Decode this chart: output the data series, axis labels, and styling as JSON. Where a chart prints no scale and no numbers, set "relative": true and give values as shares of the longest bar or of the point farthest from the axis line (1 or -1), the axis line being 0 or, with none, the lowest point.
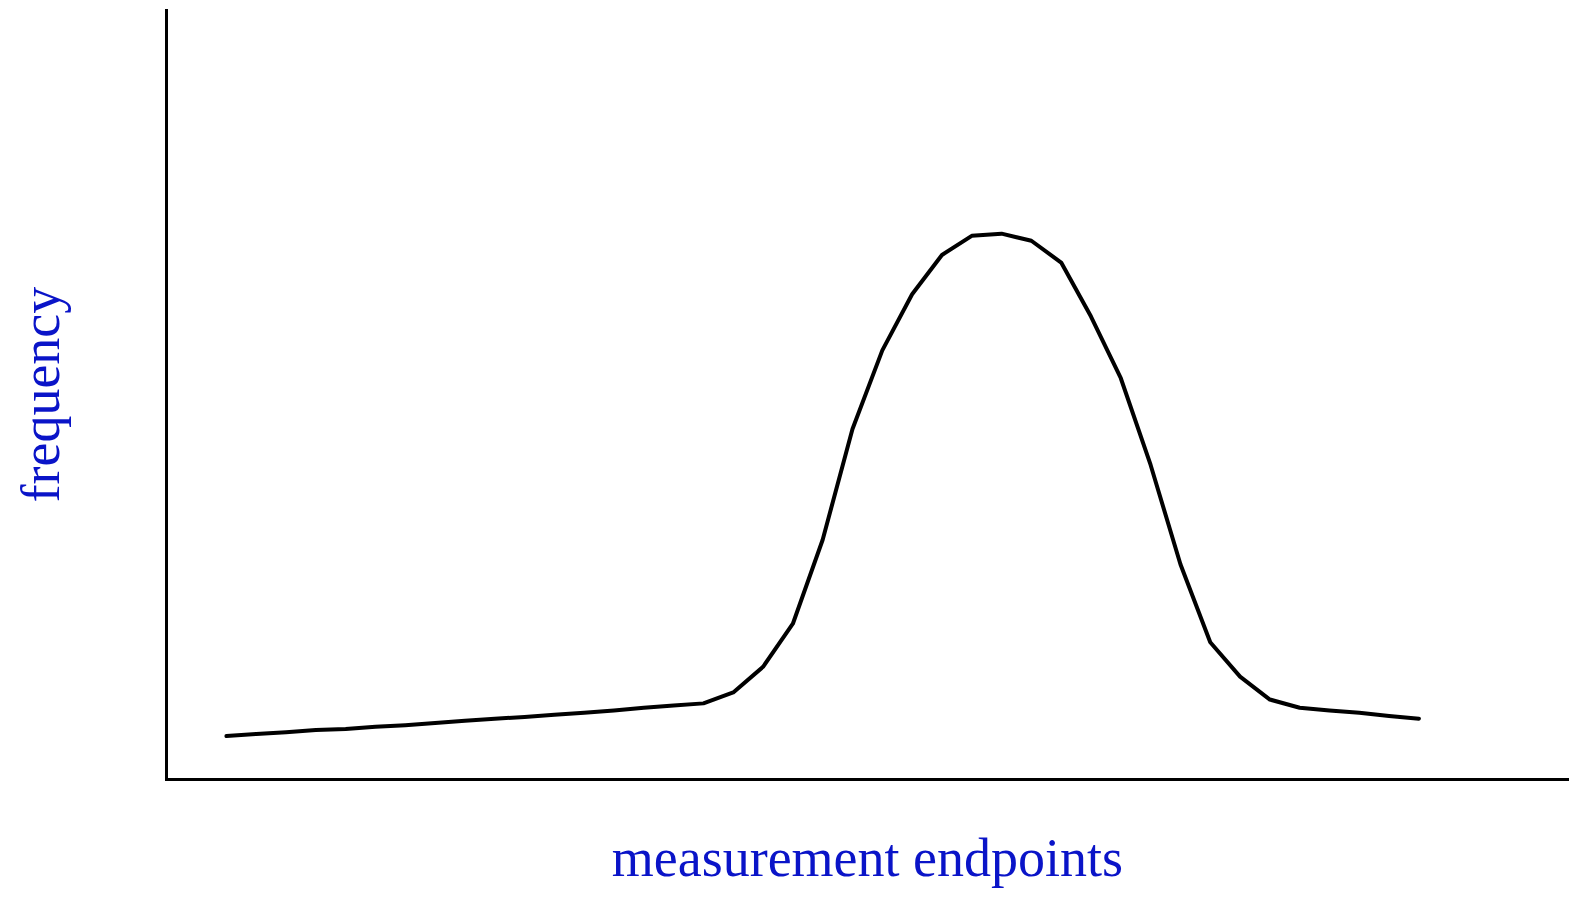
{
  "chart_data": {
    "type": "line",
    "relative": true,
    "xlabel": "measurement endpoints",
    "ylabel": "frequency",
    "marker": "none",
    "line_style": "solid",
    "categories": [
      null,
      null,
      null,
      null,
      null,
      null,
      null,
      null,
      null,
      null,
      null,
      null,
      null,
      null,
      null,
      null,
      null,
      null,
      null,
      null,
      null,
      null,
      null,
      null,
      null,
      null,
      null,
      null,
      null,
      null,
      null,
      null,
      null,
      null,
      null,
      null,
      null,
      null,
      null,
      null,
      null,
      null,
      null,
      null,
      null,
      null,
      null,
      null
    ],
    "series": [
      {
        "color": "#000000",
        "values": [
          null,
          null,
          0.079,
          0.083,
          0.086,
          0.09,
          0.092,
          0.096,
          0.099,
          0.103,
          0.107,
          0.111,
          0.114,
          0.118,
          0.122,
          0.126,
          0.131,
          0.135,
          0.139,
          0.159,
          0.206,
          0.285,
          0.439,
          0.642,
          0.786,
          0.889,
          0.961,
          0.996,
          1,
          0.987,
          0.947,
          0.848,
          0.735,
          0.576,
          0.394,
          0.251,
          0.188,
          0.146,
          0.131,
          0.126,
          0.122,
          0.116,
          0.111,
          null,
          null,
          null,
          null,
          null
        ]
      }
    ]
  }
}
